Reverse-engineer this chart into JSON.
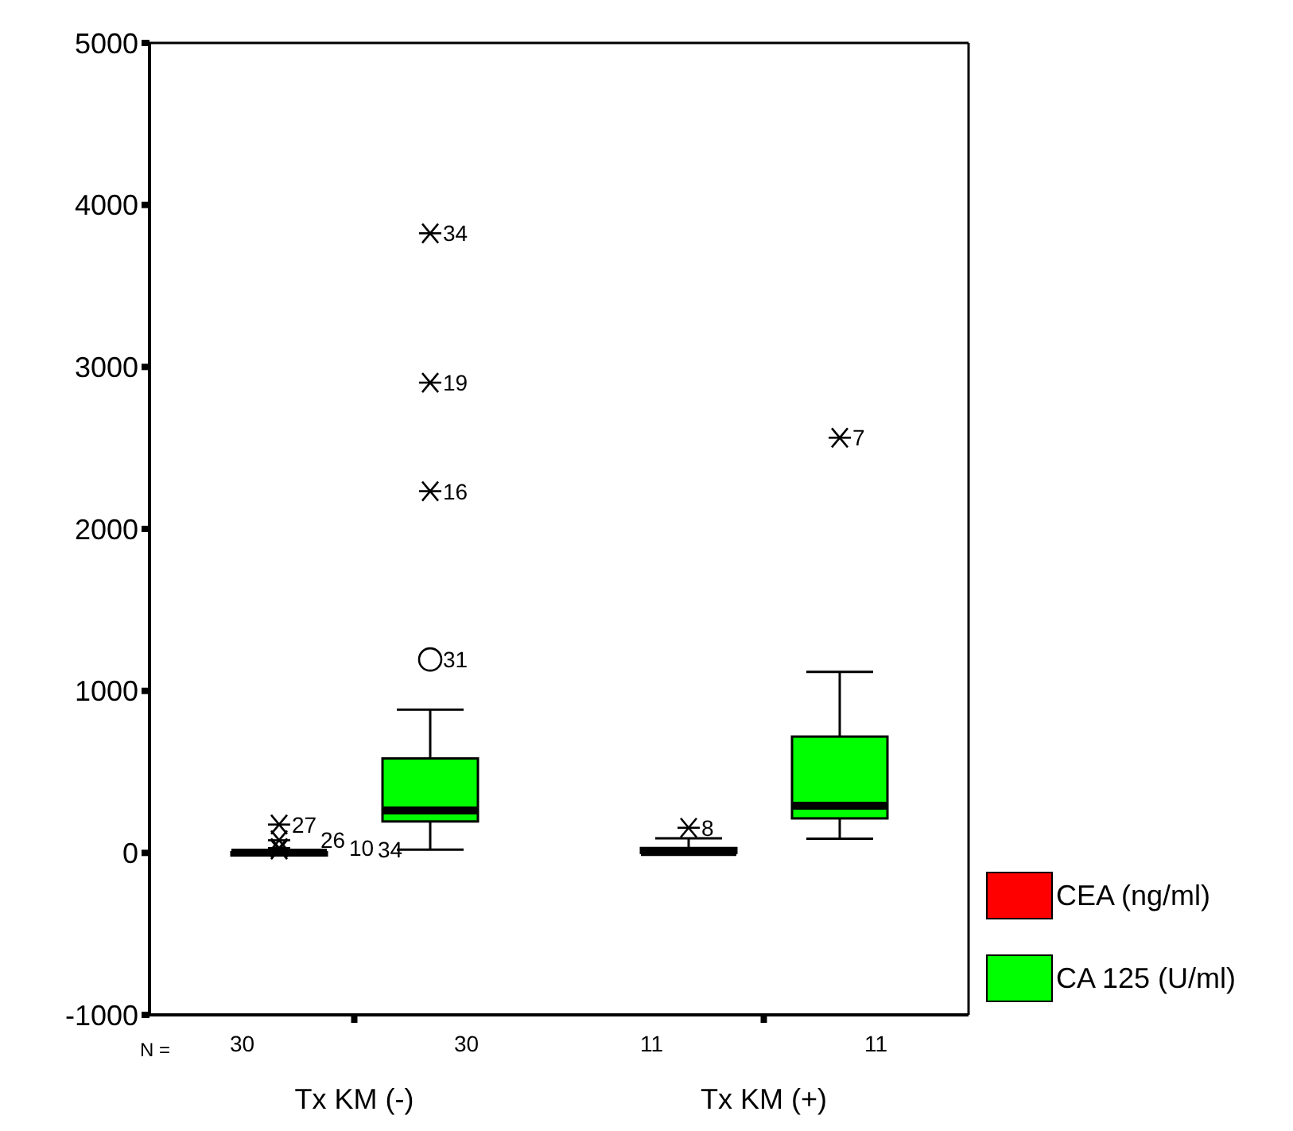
{
  "chart_data": {
    "type": "box",
    "categories": [
      "Tx KM (-)",
      "Tx KM (+)"
    ],
    "series": [
      {
        "name": "CEA (ng/ml)",
        "color": "#ff0000",
        "boxes": [
          {
            "low": 0,
            "q1": 1,
            "median": 2,
            "q3": 4,
            "high": 8,
            "outliers": [
              175,
              78,
              30,
              20
            ]
          },
          {
            "low": 0,
            "q1": 0,
            "median": 5,
            "q3": 30,
            "high": 90,
            "outliers": [
              155
            ]
          }
        ]
      },
      {
        "name": "CA 125 (U/ml)",
        "color": "#00ff00",
        "boxes": [
          {
            "low": 20,
            "q1": 194,
            "median": 262,
            "q3": 583,
            "high": 884,
            "outliers": [
              1194,
              2233,
              2903,
              3825
            ]
          },
          {
            "low": 87,
            "q1": 213,
            "median": 291,
            "q3": 718,
            "high": 1117,
            "outliers": [
              2563
            ]
          }
        ]
      }
    ],
    "ylim": [
      -1000,
      5000
    ],
    "yticks": [
      -1000,
      0,
      1000,
      2000,
      3000,
      4000,
      5000
    ],
    "legend": "bottom right",
    "annotations": [
      "N =",
      "30",
      "30",
      "11",
      "11",
      "27",
      "26",
      "10",
      "34",
      "31",
      "16",
      "19",
      "34",
      "8",
      "7"
    ]
  }
}
